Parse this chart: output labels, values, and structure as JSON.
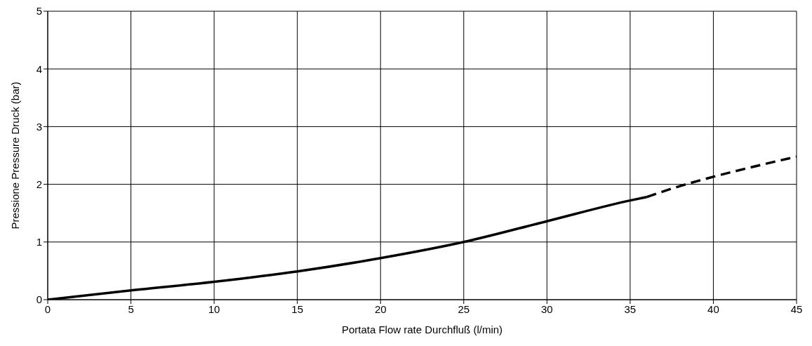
{
  "chart_data": {
    "type": "line",
    "xlabel": "Portata    Flow rate    Durchfluß (l/min)",
    "ylabel": "Pressione    Pressure    Druck (bar)",
    "xlim": [
      0,
      45
    ],
    "xticks": [
      0,
      5,
      10,
      15,
      20,
      25,
      30,
      35,
      40,
      45
    ],
    "ylim": [
      0,
      5
    ],
    "yticks": [
      0,
      1,
      2,
      3,
      4,
      5
    ],
    "grid": true,
    "marker": "none",
    "series": [
      {
        "color": "#000000",
        "line_style": "solid",
        "x": [
          0,
          5,
          10,
          15,
          20,
          25,
          30,
          35,
          36
        ],
        "values": [
          0,
          0.16,
          0.31,
          0.49,
          0.72,
          1.0,
          1.36,
          1.72,
          1.78
        ]
      },
      {
        "color": "#000000",
        "line_style": "dashed",
        "x": [
          36,
          38,
          40,
          45
        ],
        "values": [
          1.78,
          1.97,
          2.13,
          2.48
        ]
      }
    ]
  }
}
